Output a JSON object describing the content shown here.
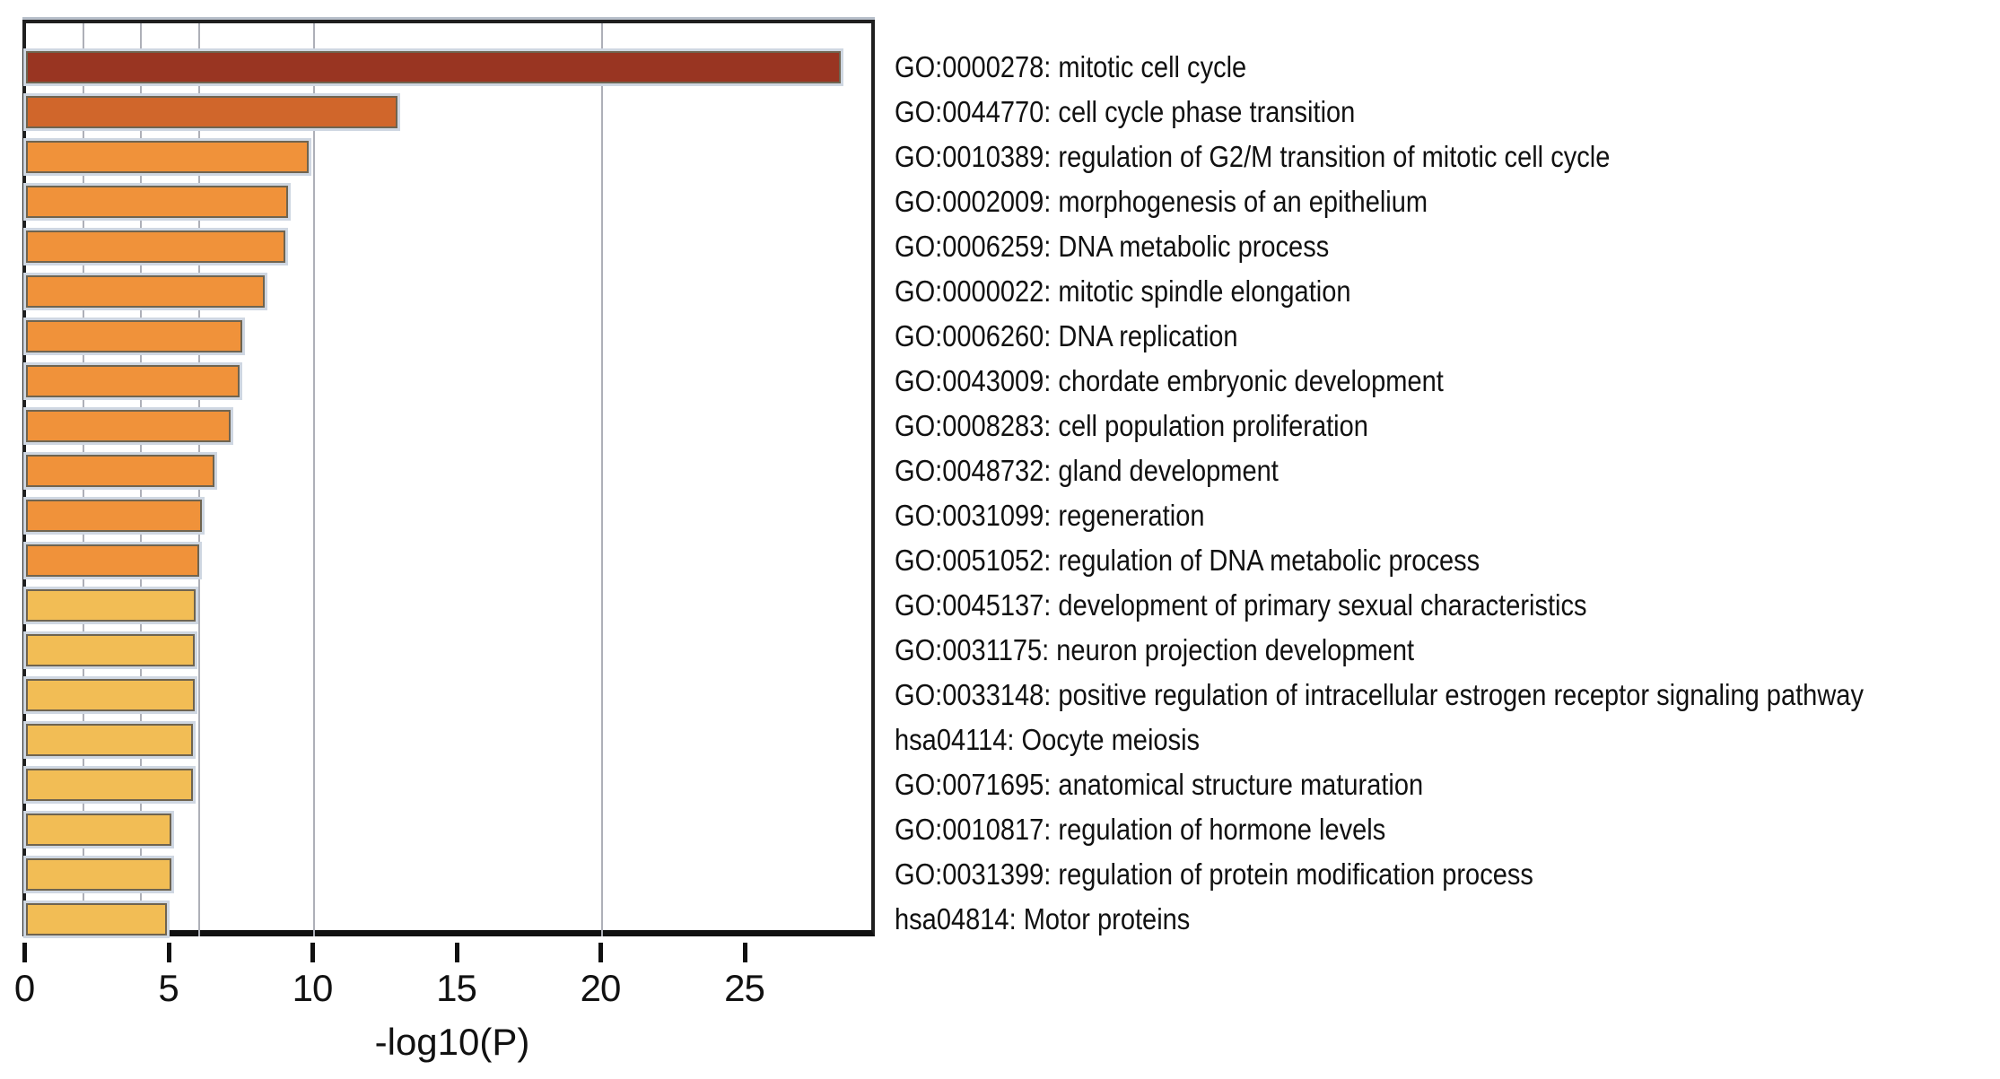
{
  "chart_data": {
    "type": "bar",
    "orientation": "horizontal",
    "xlabel": "-log10(P)",
    "xlim": [
      0,
      29.7
    ],
    "xticks": [
      0,
      5,
      10,
      15,
      20,
      25
    ],
    "gridlines_at": [
      2,
      4,
      6,
      10,
      20
    ],
    "grid": true,
    "legend": "none",
    "categories": [
      "GO:0000278: mitotic cell cycle",
      "GO:0044770: cell cycle phase transition",
      "GO:0010389: regulation of G2/M transition of mitotic cell cycle",
      "GO:0002009: morphogenesis of an epithelium",
      "GO:0006259: DNA metabolic process",
      "GO:0000022: mitotic spindle elongation",
      "GO:0006260: DNA replication",
      "GO:0043009: chordate embryonic development",
      "GO:0008283: cell population proliferation",
      "GO:0048732: gland development",
      "GO:0031099: regeneration",
      "GO:0051052: regulation of DNA metabolic process",
      "GO:0045137: development of primary sexual characteristics",
      "GO:0031175: neuron projection development",
      "GO:0033148: positive regulation of intracellular estrogen receptor signaling pathway",
      "hsa04114: Oocyte meiosis",
      "GO:0071695: anatomical structure maturation",
      "GO:0010817: regulation of hormone levels",
      "GO:0031399: regulation of protein modification process",
      "hsa04814: Motor proteins"
    ],
    "values": [
      28.3,
      12.9,
      9.8,
      9.1,
      9.0,
      8.3,
      7.5,
      7.4,
      7.1,
      6.55,
      6.1,
      6.0,
      5.9,
      5.85,
      5.85,
      5.8,
      5.8,
      5.05,
      5.05,
      4.9
    ],
    "color_bins": [
      {
        "min_value": 20,
        "color": "#993522",
        "meaning": "-log10(P) > 20"
      },
      {
        "min_value": 10,
        "color": "#d0662b",
        "meaning": "-log10(P) 10-20"
      },
      {
        "min_value": 6,
        "color": "#f0923a",
        "meaning": "-log10(P) 6-10"
      },
      {
        "min_value": 0,
        "color": "#f2bd55",
        "meaning": "-log10(P) 4-6"
      }
    ],
    "colors": {
      "gridline": "#aeb0b8",
      "bar_border": "#6f6450",
      "bar_halo": "#cfd7e2",
      "axis": "#1f1f1f",
      "text": "#111111"
    }
  }
}
